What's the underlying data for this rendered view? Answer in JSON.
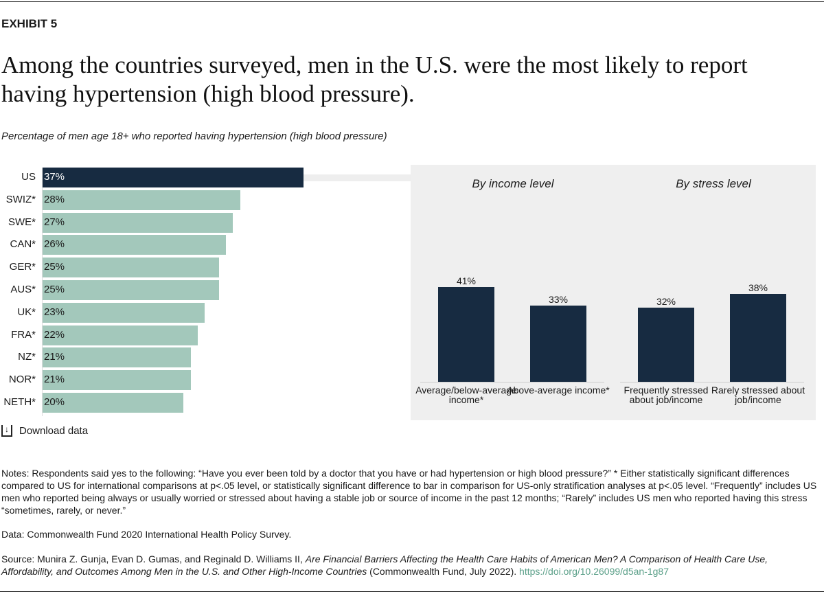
{
  "header": {
    "exhibit": "EXHIBIT 5",
    "title": "Among the countries surveyed, men in the U.S. were the most likely to report having hypertension (high blood pressure).",
    "subtitle": "Percentage of men age 18+ who reported having hypertension (high blood pressure)"
  },
  "colors": {
    "us": "#172b41",
    "others": "#a3c8bb",
    "panel": "#efefef"
  },
  "chart_data": [
    {
      "type": "bar",
      "orientation": "horizontal",
      "categories": [
        "US",
        "SWIZ*",
        "SWE*",
        "CAN*",
        "GER*",
        "AUS*",
        "UK*",
        "FRA*",
        "NZ*",
        "NOR*",
        "NETH*"
      ],
      "values": [
        37,
        28,
        27,
        26,
        25,
        25,
        23,
        22,
        21,
        21,
        20
      ],
      "labels": [
        "37%",
        "28%",
        "27%",
        "26%",
        "25%",
        "25%",
        "23%",
        "22%",
        "21%",
        "21%",
        "20%"
      ]
    },
    {
      "type": "bar",
      "title": "By income level",
      "categories": [
        "Average/below-average income*",
        "Above-average income*"
      ],
      "values": [
        41,
        33
      ],
      "labels": [
        "41%",
        "33%"
      ]
    },
    {
      "type": "bar",
      "title": "By stress level",
      "categories": [
        "Frequently stressed about job/income",
        "Rarely stressed about job/income"
      ],
      "values": [
        32,
        38
      ],
      "labels": [
        "32%",
        "38%"
      ]
    }
  ],
  "download": {
    "label": "Download data",
    "icon": "download-icon"
  },
  "footer": {
    "notes": "Notes: Respondents said yes to the following: “Have you ever been told by a doctor that you have or had hypertension or high blood pressure?” * Either statistically significant differences compared to US for international comparisons at p<.05 level, or statistically significant difference to bar in comparison for US-only stratification analyses at p<.05 level. “Frequently” includes US men who reported being always or usually worried or stressed about having a stable job or source of income in the past 12 months; “Rarely” includes US men who reported having this stress “sometimes, rarely, or never.”",
    "data": "Data: Commonwealth Fund 2020 International Health Policy Survey.",
    "source_prefix": "Source: Munira Z. Gunja, Evan D. Gumas, and Reginald D. Williams II, ",
    "source_title": "Are Financial Barriers Affecting the Health Care Habits of American Men? A Comparison of Health Care Use, Affordability, and Outcomes Among Men in the U.S. and Other High-Income Countries",
    "source_suffix": " (Commonwealth Fund, July 2022). ",
    "link": "https://doi.org/10.26099/d5an-1g87"
  }
}
